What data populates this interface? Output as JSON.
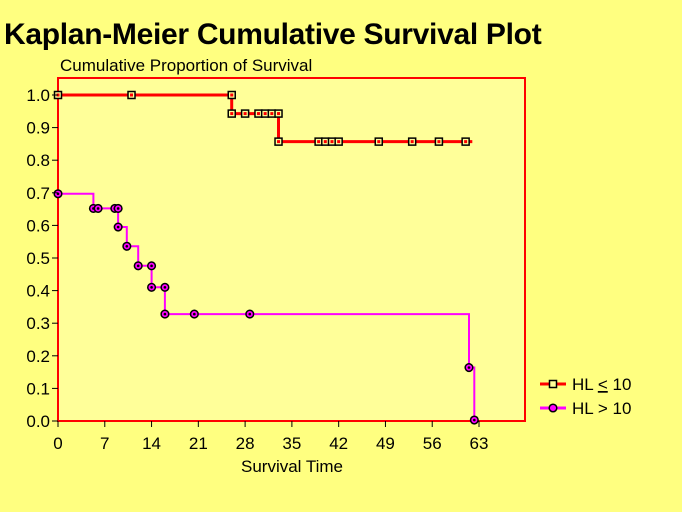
{
  "page_title": "Kaplan-Meier Cumulative Survival Plot",
  "chart_data": {
    "type": "line",
    "title": "Kaplan-Meier Cumulative Survival Plot",
    "ylabel": "Cumulative Proportion of Survival",
    "xlabel": "Survival Time",
    "xlim": [
      0,
      70
    ],
    "ylim": [
      0,
      1.0
    ],
    "x_ticks": [
      0,
      7,
      14,
      21,
      28,
      35,
      42,
      49,
      56,
      63
    ],
    "y_ticks": [
      0.0,
      0.1,
      0.2,
      0.3,
      0.4,
      0.5,
      0.6,
      0.7,
      0.8,
      0.9,
      1.0
    ],
    "y_tick_labels": [
      "0.0",
      "0.1",
      "0.2",
      "0.3",
      "0.4",
      "0.5",
      "0.6",
      "0.7",
      "0.8",
      "0.9",
      "1.0"
    ],
    "x_tick_labels": [
      "0",
      "7",
      "14",
      "21",
      "28",
      "35",
      "42",
      "49",
      "56",
      "63"
    ],
    "plot_background": "#ffff99",
    "frame_color": "#ff0000",
    "series": [
      {
        "name": "HL ≤ 10",
        "legend_prefix": "HL ",
        "legend_symbol": "<",
        "legend_suffix": " 10",
        "color": "#ff0000",
        "marker": "square",
        "steps": [
          [
            0,
            1.0
          ],
          [
            26,
            1.0
          ],
          [
            26,
            0.943
          ],
          [
            33,
            0.943
          ],
          [
            33,
            0.857
          ],
          [
            62,
            0.857
          ]
        ],
        "markers": [
          [
            0,
            1.0
          ],
          [
            11,
            1.0
          ],
          [
            26,
            1.0
          ],
          [
            26,
            0.943
          ],
          [
            28,
            0.943
          ],
          [
            30,
            0.943
          ],
          [
            31,
            0.943
          ],
          [
            32,
            0.943
          ],
          [
            33,
            0.943
          ],
          [
            33,
            0.857
          ],
          [
            39,
            0.857
          ],
          [
            40,
            0.857
          ],
          [
            41,
            0.857
          ],
          [
            42,
            0.857
          ],
          [
            48,
            0.857
          ],
          [
            53,
            0.857
          ],
          [
            57,
            0.857
          ],
          [
            61,
            0.857
          ]
        ]
      },
      {
        "name": "HL > 10",
        "legend_prefix": "HL ",
        "legend_symbol": ">",
        "legend_suffix": " 10",
        "color": "#ff00ff",
        "marker": "circle",
        "steps": [
          [
            0,
            0.697
          ],
          [
            5.3,
            0.697
          ],
          [
            5.3,
            0.652
          ],
          [
            9,
            0.652
          ],
          [
            9,
            0.595
          ],
          [
            10.3,
            0.595
          ],
          [
            10.3,
            0.536
          ],
          [
            12,
            0.536
          ],
          [
            12,
            0.476
          ],
          [
            14,
            0.476
          ],
          [
            14,
            0.41
          ],
          [
            16,
            0.41
          ],
          [
            16,
            0.328
          ],
          [
            61.5,
            0.328
          ],
          [
            61.5,
            0.164
          ],
          [
            62.3,
            0.164
          ],
          [
            62.3,
            0.003
          ]
        ],
        "markers": [
          [
            0,
            0.697
          ],
          [
            5.3,
            0.652
          ],
          [
            6,
            0.652
          ],
          [
            8.5,
            0.652
          ],
          [
            9,
            0.652
          ],
          [
            9,
            0.595
          ],
          [
            10.3,
            0.536
          ],
          [
            12,
            0.476
          ],
          [
            14,
            0.476
          ],
          [
            14,
            0.41
          ],
          [
            16,
            0.41
          ],
          [
            16,
            0.328
          ],
          [
            20.4,
            0.328
          ],
          [
            28.7,
            0.328
          ],
          [
            61.5,
            0.164
          ],
          [
            62.3,
            0.003
          ]
        ]
      }
    ]
  }
}
